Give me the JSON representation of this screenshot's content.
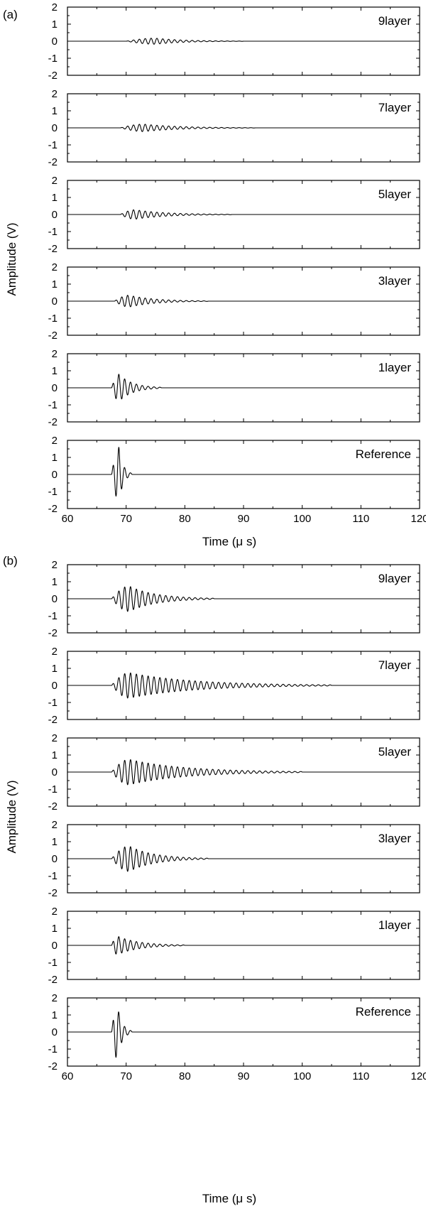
{
  "panels": [
    {
      "label": "(a)"
    },
    {
      "label": "(b)"
    }
  ],
  "chart_data": [
    {
      "type": "line",
      "panel": "(a)",
      "xlabel": "Time (μ s)",
      "ylabel": "Amplitude (V)",
      "xlim": [
        60,
        120
      ],
      "ylim": [
        -2,
        2
      ],
      "xticks": [
        60,
        70,
        80,
        90,
        100,
        110,
        120
      ],
      "yticks": [
        2,
        1,
        0,
        -1,
        -2
      ],
      "grid": false,
      "series": [
        {
          "name": "9layer",
          "onset": 70,
          "peak_time": 75,
          "peak_amplitude": 0.18,
          "end": 90,
          "frequency_mhz": 1.0
        },
        {
          "name": "7layer",
          "onset": 69,
          "peak_time": 73,
          "peak_amplitude": 0.22,
          "end": 92,
          "frequency_mhz": 1.0
        },
        {
          "name": "5layer",
          "onset": 69,
          "peak_time": 71.5,
          "peak_amplitude": 0.28,
          "end": 88,
          "frequency_mhz": 1.0
        },
        {
          "name": "3layer",
          "onset": 68,
          "peak_time": 70.5,
          "peak_amplitude": 0.35,
          "end": 84,
          "frequency_mhz": 1.0
        },
        {
          "name": "1layer",
          "onset": 67.5,
          "peak_time": 68.8,
          "peak_amplitude": 0.8,
          "end": 76,
          "frequency_mhz": 1.0
        },
        {
          "name": "Reference",
          "onset": 67.5,
          "peak_time": 68.8,
          "peak_amplitude": 1.6,
          "end": 71,
          "frequency_mhz": 1.0
        }
      ]
    },
    {
      "type": "line",
      "panel": "(b)",
      "xlabel": "Time (μ s)",
      "ylabel": "Amplitude (V)",
      "xlim": [
        60,
        120
      ],
      "ylim": [
        -2,
        2
      ],
      "xticks": [
        60,
        70,
        80,
        90,
        100,
        110,
        120
      ],
      "yticks": [
        2,
        1,
        0,
        -1,
        -2
      ],
      "grid": false,
      "series": [
        {
          "name": "9layer",
          "onset": 67.5,
          "peak_time": 70.5,
          "peak_amplitude": 0.75,
          "end": 85,
          "frequency_mhz": 1.0
        },
        {
          "name": "7layer",
          "onset": 67.5,
          "peak_time": 70.5,
          "peak_amplitude": 0.75,
          "end": 105,
          "frequency_mhz": 1.0
        },
        {
          "name": "5layer",
          "onset": 67.5,
          "peak_time": 70.5,
          "peak_amplitude": 0.75,
          "end": 100,
          "frequency_mhz": 1.0
        },
        {
          "name": "3layer",
          "onset": 67.5,
          "peak_time": 70.5,
          "peak_amplitude": 0.75,
          "end": 84,
          "frequency_mhz": 1.0
        },
        {
          "name": "1layer",
          "onset": 67.5,
          "peak_time": 68.5,
          "peak_amplitude": 0.55,
          "end": 80,
          "frequency_mhz": 1.0
        },
        {
          "name": "Reference",
          "onset": 67.5,
          "peak_time": 68.5,
          "peak_amplitude": 1.6,
          "end": 71,
          "frequency_mhz": 1.0
        }
      ]
    }
  ]
}
